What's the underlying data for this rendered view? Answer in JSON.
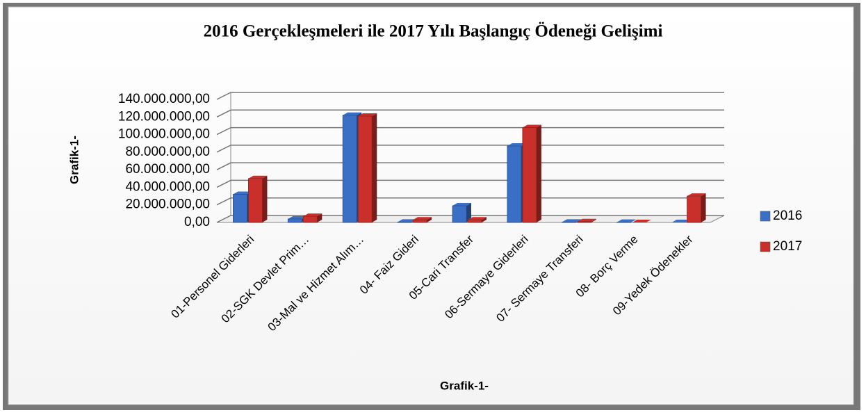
{
  "chart_data": {
    "type": "bar3d",
    "title": "2016 Gerçekleşmeleri ile 2017 Yılı Başlangıç Ödeneği Gelişimi",
    "y_label": "Grafik-1-",
    "x_label": "Grafik-1-",
    "categories": [
      "01-Personel Giderleri",
      "02-SGK Devlet Prim…",
      "03-Mal ve Hizmet Alım…",
      "04- Faiz Gideri",
      "05-Cari Transfer",
      "06-Sermaye Giderleri",
      "07- Sermaye Transferi",
      "08- Borç Verme",
      "09-Yedek Ödenekler"
    ],
    "series": [
      {
        "name": "2016",
        "color": "#3b6fc6",
        "values": [
          32000000,
          4000000,
          122000000,
          500000,
          19000000,
          87000000,
          500000,
          300000,
          0
        ]
      },
      {
        "name": "2017",
        "color": "#c9302c",
        "values": [
          50000000,
          7000000,
          121000000,
          3000000,
          3000000,
          108000000,
          1000000,
          0,
          30000000
        ]
      }
    ],
    "ylim": [
      0,
      140000000
    ],
    "yticks": [
      {
        "value": 0,
        "label": "0,00"
      },
      {
        "value": 20000000,
        "label": "20.000.000,00"
      },
      {
        "value": 40000000,
        "label": "40.000.000,00"
      },
      {
        "value": 60000000,
        "label": "60.000.000,00"
      },
      {
        "value": 80000000,
        "label": "80.000.000,00"
      },
      {
        "value": 100000000,
        "label": "100.000.000,00"
      },
      {
        "value": 120000000,
        "label": "120.000.000,00"
      },
      {
        "value": 140000000,
        "label": "140.000.000,00"
      }
    ],
    "grid": true,
    "legend": "right"
  }
}
